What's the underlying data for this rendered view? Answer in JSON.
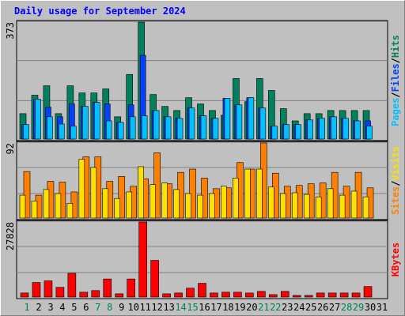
{
  "chart_data": [
    {
      "type": "bar",
      "title": "Daily usage for September 2024",
      "ylim": [
        0,
        373
      ],
      "yticks": [
        373
      ],
      "legend_separator": "/",
      "series": [
        {
          "name": "Pages",
          "color": "#00c0ff",
          "values": [
            46,
            127,
            71,
            48,
            41,
            104,
            117,
            58,
            53,
            71,
            74,
            91,
            71,
            66,
            99,
            74,
            66,
            130,
            109,
            132,
            99,
            41,
            46,
            46,
            61,
            66,
            71,
            66,
            58,
            41,
            0
          ]
        },
        {
          "name": "Files",
          "color": "#0040ff",
          "values": [
            46,
            127,
            102,
            71,
            112,
            104,
            117,
            112,
            53,
            109,
            267,
            91,
            71,
            66,
            99,
            74,
            66,
            130,
            109,
            132,
            99,
            41,
            46,
            46,
            61,
            66,
            71,
            66,
            58,
            58,
            0
          ]
        },
        {
          "name": "Hits",
          "color": "#00805c",
          "values": [
            81,
            140,
            170,
            81,
            170,
            147,
            147,
            160,
            71,
            206,
            373,
            142,
            104,
            91,
            132,
            112,
            91,
            76,
            193,
            119,
            193,
            155,
            97,
            58,
            81,
            81,
            91,
            91,
            91,
            91,
            0
          ]
        }
      ]
    },
    {
      "type": "bar",
      "ylim": [
        0,
        92
      ],
      "yticks": [
        92
      ],
      "legend_separator": "/",
      "series": [
        {
          "name": "Sites",
          "color": "#ff8000",
          "values": [
            57,
            28,
            45,
            44,
            32,
            75,
            75,
            45,
            51,
            39,
            48,
            80,
            42,
            56,
            60,
            49,
            36,
            37,
            68,
            60,
            92,
            55,
            39,
            40,
            42,
            43,
            56,
            39,
            56,
            37,
            0
          ]
        },
        {
          "name": "Visits",
          "color": "#ffe000",
          "values": [
            28,
            21,
            35,
            30,
            18,
            72,
            62,
            36,
            24,
            32,
            63,
            41,
            43,
            35,
            30,
            28,
            30,
            39,
            49,
            60,
            60,
            38,
            30,
            31,
            29,
            26,
            36,
            28,
            33,
            26,
            0
          ]
        }
      ]
    },
    {
      "type": "bar",
      "ylim": [
        0,
        27828
      ],
      "yticks": [
        27828
      ],
      "categories": [
        "1",
        "2",
        "3",
        "4",
        "5",
        "6",
        "7",
        "8",
        "9",
        "10",
        "11",
        "12",
        "13",
        "14",
        "15",
        "16",
        "17",
        "18",
        "19",
        "20",
        "21",
        "22",
        "23",
        "24",
        "25",
        "26",
        "27",
        "28",
        "29",
        "30",
        "31"
      ],
      "highlight_categories": [
        "1",
        "7",
        "8",
        "14",
        "15",
        "21",
        "22",
        "28",
        "29"
      ],
      "highlight_color": "#00805c",
      "category_color": "#000000",
      "series": [
        {
          "name": "KBytes",
          "color": "#ff0000",
          "values": [
            1500,
            5400,
            6000,
            3600,
            8800,
            1800,
            2400,
            6700,
            1200,
            6700,
            27828,
            13600,
            1200,
            1500,
            3300,
            5100,
            1500,
            1800,
            1800,
            1500,
            2100,
            900,
            2100,
            600,
            600,
            1500,
            1500,
            1500,
            1500,
            3900,
            0
          ]
        }
      ]
    }
  ]
}
